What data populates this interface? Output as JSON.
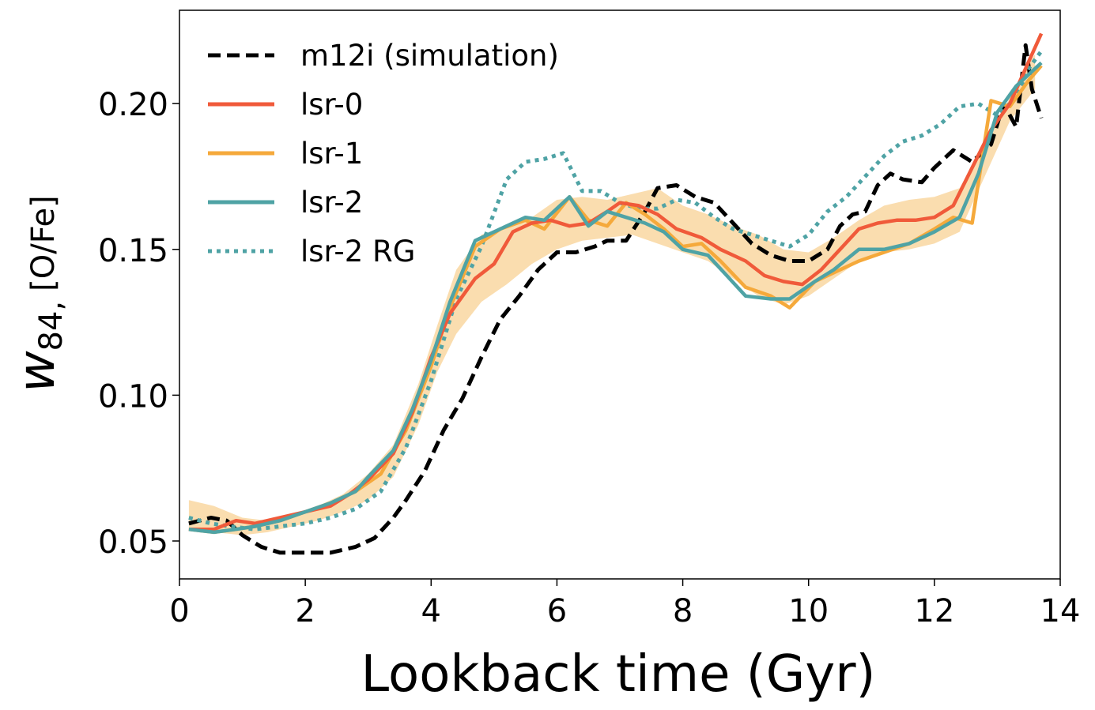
{
  "chart_data": {
    "type": "line",
    "xlabel": "Lookback time (Gyr)",
    "ylabel_main": "w",
    "ylabel_sub": "84,",
    "ylabel_rest": "[O/Fe]",
    "xlim": [
      0,
      14
    ],
    "ylim": [
      0.037,
      0.232
    ],
    "xticks": [
      0,
      2,
      4,
      6,
      8,
      10,
      12,
      14
    ],
    "xtick_labels": [
      "0",
      "2",
      "4",
      "6",
      "8",
      "10",
      "12",
      "14"
    ],
    "yticks": [
      0.05,
      0.1,
      0.15,
      0.2
    ],
    "ytick_labels": [
      "0.05",
      "0.10",
      "0.15",
      "0.20"
    ],
    "grid": false,
    "legend_position": "top-left",
    "band": {
      "color": "#f7c67a",
      "x": [
        0.15,
        0.55,
        1.0,
        1.4,
        1.8,
        2.2,
        2.6,
        3.0,
        3.4,
        3.8,
        4.1,
        4.4,
        4.8,
        5.2,
        5.6,
        6.0,
        6.4,
        6.8,
        7.2,
        7.6,
        8.0,
        8.4,
        8.8,
        9.2,
        9.6,
        10.0,
        10.4,
        10.8,
        11.2,
        11.6,
        12.0,
        12.4,
        12.8,
        13.2,
        13.6
      ],
      "lower": [
        0.054,
        0.053,
        0.052,
        0.053,
        0.055,
        0.057,
        0.06,
        0.064,
        0.072,
        0.09,
        0.108,
        0.121,
        0.132,
        0.138,
        0.145,
        0.15,
        0.153,
        0.154,
        0.155,
        0.152,
        0.149,
        0.146,
        0.14,
        0.134,
        0.131,
        0.134,
        0.14,
        0.146,
        0.149,
        0.15,
        0.152,
        0.156,
        0.175,
        0.194,
        0.205
      ],
      "upper": [
        0.064,
        0.062,
        0.058,
        0.057,
        0.059,
        0.062,
        0.066,
        0.073,
        0.083,
        0.104,
        0.124,
        0.143,
        0.155,
        0.158,
        0.161,
        0.167,
        0.168,
        0.167,
        0.169,
        0.171,
        0.165,
        0.162,
        0.158,
        0.155,
        0.15,
        0.149,
        0.154,
        0.16,
        0.165,
        0.167,
        0.168,
        0.171,
        0.186,
        0.202,
        0.217
      ]
    },
    "series": [
      {
        "name": "m12i (simulation)",
        "color": "#000000",
        "style": "dashed",
        "x": [
          0.15,
          0.5,
          0.75,
          1.0,
          1.3,
          1.6,
          2.0,
          2.4,
          2.8,
          3.1,
          3.4,
          3.6,
          3.9,
          4.2,
          4.5,
          4.8,
          5.1,
          5.4,
          5.7,
          6.0,
          6.3,
          6.6,
          6.8,
          7.1,
          7.4,
          7.6,
          7.9,
          8.2,
          8.5,
          8.8,
          9.1,
          9.4,
          9.7,
          10.0,
          10.3,
          10.5,
          10.7,
          10.9,
          11.1,
          11.3,
          11.5,
          11.8,
          12.0,
          12.3,
          12.6,
          12.9,
          13.1,
          13.3,
          13.45,
          13.55,
          13.7
        ],
        "y": [
          0.056,
          0.058,
          0.057,
          0.052,
          0.048,
          0.046,
          0.046,
          0.046,
          0.048,
          0.051,
          0.058,
          0.064,
          0.074,
          0.088,
          0.099,
          0.113,
          0.126,
          0.134,
          0.143,
          0.149,
          0.149,
          0.151,
          0.153,
          0.153,
          0.163,
          0.171,
          0.172,
          0.168,
          0.166,
          0.159,
          0.152,
          0.148,
          0.146,
          0.146,
          0.15,
          0.158,
          0.162,
          0.163,
          0.172,
          0.176,
          0.174,
          0.173,
          0.178,
          0.184,
          0.18,
          0.186,
          0.2,
          0.192,
          0.22,
          0.205,
          0.195
        ]
      },
      {
        "name": "lsr-0",
        "color": "#f05a3a",
        "style": "solid",
        "x": [
          0.15,
          0.55,
          0.9,
          1.2,
          1.6,
          2.0,
          2.4,
          2.7,
          3.0,
          3.4,
          3.7,
          4.0,
          4.3,
          4.7,
          5.0,
          5.3,
          5.6,
          5.9,
          6.2,
          6.5,
          6.8,
          7.0,
          7.3,
          7.6,
          7.9,
          8.3,
          8.6,
          9.0,
          9.3,
          9.6,
          9.9,
          10.2,
          10.5,
          10.8,
          11.1,
          11.4,
          11.7,
          12.0,
          12.3,
          12.6,
          12.9,
          13.2,
          13.45,
          13.7
        ],
        "y": [
          0.054,
          0.054,
          0.057,
          0.056,
          0.058,
          0.06,
          0.062,
          0.066,
          0.071,
          0.08,
          0.094,
          0.113,
          0.128,
          0.14,
          0.145,
          0.156,
          0.159,
          0.16,
          0.158,
          0.159,
          0.163,
          0.166,
          0.165,
          0.162,
          0.157,
          0.154,
          0.15,
          0.146,
          0.141,
          0.139,
          0.138,
          0.143,
          0.15,
          0.157,
          0.159,
          0.16,
          0.16,
          0.161,
          0.165,
          0.178,
          0.191,
          0.2,
          0.212,
          0.224
        ]
      },
      {
        "name": "lsr-1",
        "color": "#f5a93b",
        "style": "solid",
        "x": [
          0.15,
          0.55,
          0.9,
          1.2,
          1.6,
          2.0,
          2.4,
          2.8,
          3.2,
          3.6,
          4.0,
          4.3,
          4.7,
          5.1,
          5.5,
          5.8,
          6.2,
          6.5,
          6.8,
          7.1,
          7.4,
          7.7,
          8.0,
          8.3,
          8.6,
          9.0,
          9.4,
          9.7,
          10.1,
          10.5,
          10.8,
          11.2,
          11.6,
          12.0,
          12.3,
          12.6,
          12.9,
          13.2,
          13.5,
          13.7
        ],
        "y": [
          0.054,
          0.053,
          0.054,
          0.055,
          0.057,
          0.06,
          0.063,
          0.067,
          0.073,
          0.088,
          0.11,
          0.13,
          0.151,
          0.157,
          0.16,
          0.157,
          0.168,
          0.16,
          0.158,
          0.166,
          0.162,
          0.157,
          0.151,
          0.152,
          0.146,
          0.137,
          0.134,
          0.13,
          0.139,
          0.143,
          0.146,
          0.149,
          0.152,
          0.157,
          0.161,
          0.159,
          0.201,
          0.199,
          0.208,
          0.213
        ]
      },
      {
        "name": "lsr-2",
        "color": "#4fa3a5",
        "style": "solid",
        "x": [
          0.15,
          0.55,
          0.9,
          1.2,
          1.6,
          2.0,
          2.4,
          2.8,
          3.0,
          3.4,
          3.7,
          4.0,
          4.3,
          4.7,
          5.1,
          5.5,
          5.8,
          6.2,
          6.5,
          6.8,
          7.1,
          7.4,
          7.7,
          8.0,
          8.4,
          8.7,
          9.0,
          9.4,
          9.7,
          10.1,
          10.4,
          10.8,
          11.2,
          11.6,
          12.0,
          12.4,
          12.7,
          13.0,
          13.3,
          13.5,
          13.7
        ],
        "y": [
          0.054,
          0.053,
          0.054,
          0.055,
          0.057,
          0.06,
          0.063,
          0.067,
          0.072,
          0.081,
          0.095,
          0.112,
          0.132,
          0.153,
          0.157,
          0.161,
          0.16,
          0.168,
          0.158,
          0.163,
          0.161,
          0.159,
          0.156,
          0.15,
          0.148,
          0.141,
          0.134,
          0.133,
          0.133,
          0.139,
          0.143,
          0.15,
          0.15,
          0.152,
          0.156,
          0.161,
          0.176,
          0.197,
          0.206,
          0.21,
          0.214
        ]
      },
      {
        "name": "lsr-2 RG",
        "color": "#4fa3a5",
        "style": "dotted",
        "x": [
          0.15,
          0.5,
          0.8,
          1.2,
          1.6,
          2.0,
          2.4,
          2.8,
          3.2,
          3.6,
          4.0,
          4.4,
          4.8,
          5.2,
          5.5,
          5.8,
          6.1,
          6.4,
          6.7,
          7.0,
          7.3,
          7.6,
          7.9,
          8.2,
          8.5,
          8.8,
          9.1,
          9.4,
          9.7,
          10.0,
          10.3,
          10.6,
          10.9,
          11.2,
          11.5,
          11.8,
          12.1,
          12.4,
          12.7,
          13.0,
          13.3,
          13.5,
          13.7
        ],
        "y": [
          0.058,
          0.056,
          0.055,
          0.054,
          0.055,
          0.056,
          0.058,
          0.061,
          0.067,
          0.082,
          0.105,
          0.133,
          0.151,
          0.174,
          0.18,
          0.181,
          0.183,
          0.17,
          0.17,
          0.166,
          0.164,
          0.164,
          0.167,
          0.166,
          0.161,
          0.157,
          0.155,
          0.153,
          0.151,
          0.155,
          0.163,
          0.168,
          0.175,
          0.182,
          0.187,
          0.189,
          0.193,
          0.199,
          0.2,
          0.196,
          0.202,
          0.212,
          0.218
        ]
      }
    ]
  }
}
